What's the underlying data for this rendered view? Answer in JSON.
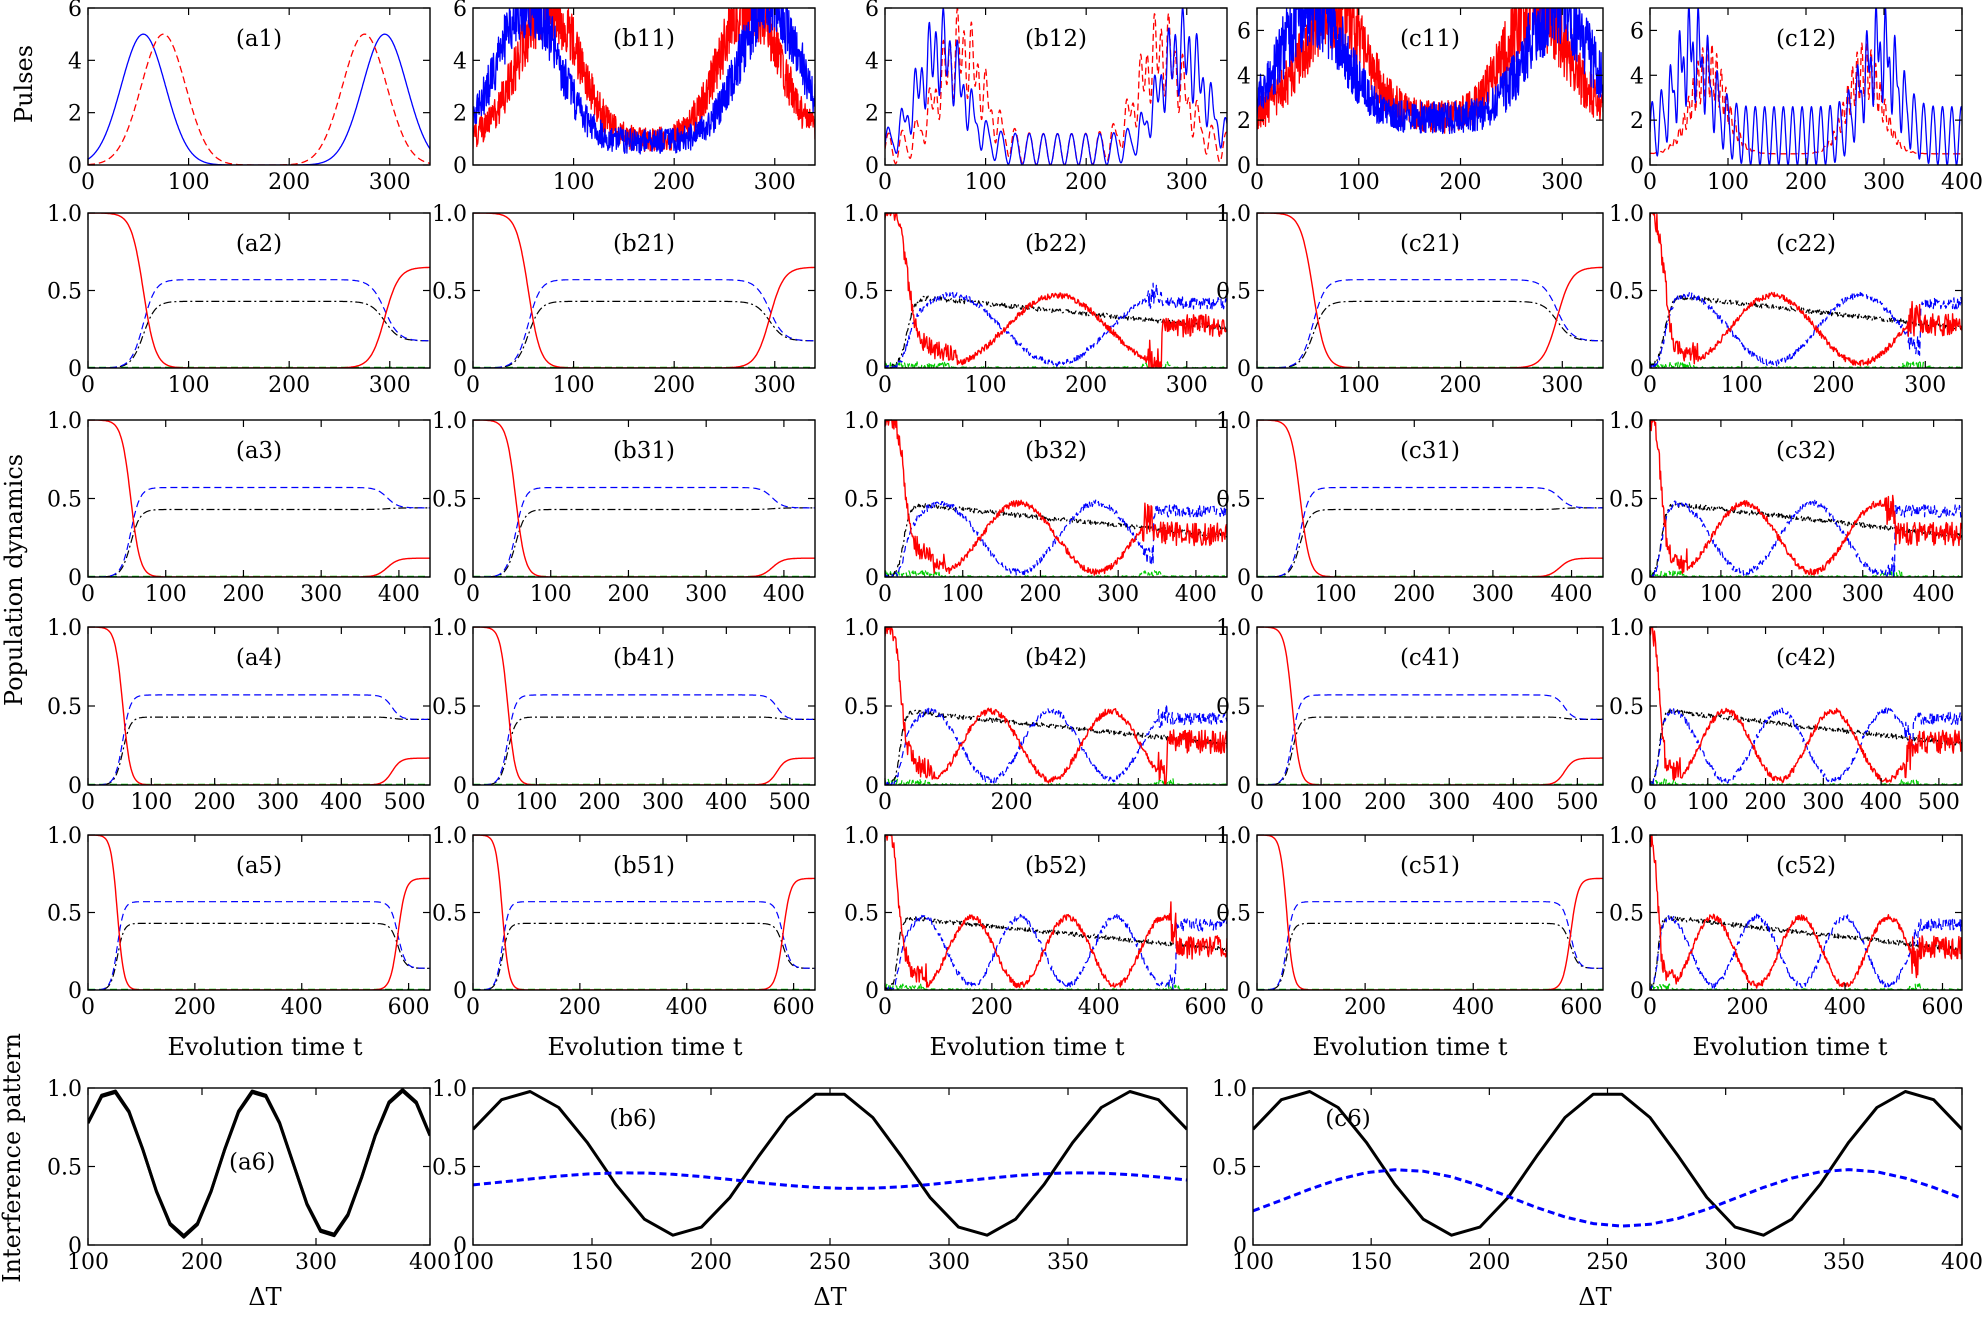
{
  "figure": {
    "row_labels": {
      "pulses": "Pulses",
      "population": "Population dynamics",
      "interference": "Interference pattern"
    },
    "xlabel_evolution": "Evolution time t",
    "xlabel_delta": "ΔT",
    "colors": {
      "blue": "#0000ff",
      "red": "#ff0000",
      "black": "#000000",
      "green": "#00cc00"
    }
  },
  "chart_data": [
    {
      "id": "a1",
      "type": "line",
      "label": "(a1)",
      "xlim": [
        0,
        340
      ],
      "ylim": [
        0,
        6
      ],
      "xticks": [
        0,
        100,
        200,
        300
      ],
      "yticks": [
        0,
        2,
        4,
        6
      ],
      "series": [
        {
          "name": "blue pulse",
          "color": "blue",
          "style": "solid",
          "kind": "gauss",
          "centers": [
            55,
            295
          ],
          "amp": 5,
          "width": 22
        },
        {
          "name": "red pulse",
          "color": "red",
          "style": "dashed",
          "kind": "gauss",
          "centers": [
            75,
            275
          ],
          "amp": 5,
          "width": 22
        }
      ]
    },
    {
      "id": "b11",
      "type": "line",
      "label": "(b11)",
      "xlim": [
        0,
        340
      ],
      "ylim": [
        0,
        6
      ],
      "xticks": [
        100,
        200,
        300
      ],
      "yticks": [
        0,
        2,
        4,
        6
      ],
      "series": [
        {
          "name": "red pulse",
          "color": "red",
          "style": "solid",
          "kind": "noisy",
          "centers": [
            75,
            275
          ],
          "amp": 5.2,
          "width": 30,
          "base": 0.9,
          "noise": 0.8
        },
        {
          "name": "blue pulse",
          "color": "blue",
          "style": "solid",
          "kind": "noisy",
          "centers": [
            55,
            295
          ],
          "amp": 5.2,
          "width": 30,
          "base": 0.9,
          "noise": 0.8
        }
      ]
    },
    {
      "id": "b12",
      "type": "line",
      "label": "(b12)",
      "xlim": [
        0,
        340
      ],
      "ylim": [
        0,
        6
      ],
      "xticks": [
        0,
        100,
        200,
        300
      ],
      "yticks": [
        0,
        2,
        4,
        6
      ],
      "series": [
        {
          "name": "red pulse",
          "color": "red",
          "style": "dashed",
          "kind": "osc",
          "centers": [
            75,
            275
          ],
          "amp": 5,
          "width": 22,
          "base": 0.6,
          "osc": 0.6,
          "period": 14
        },
        {
          "name": "blue pulse",
          "color": "blue",
          "style": "solid",
          "kind": "osc",
          "centers": [
            55,
            295
          ],
          "amp": 5,
          "width": 22,
          "base": 0.6,
          "osc": 0.6,
          "period": 14
        }
      ]
    },
    {
      "id": "c11",
      "type": "line",
      "label": "(c11)",
      "xlim": [
        0,
        340
      ],
      "ylim": [
        0,
        7
      ],
      "xticks": [
        0,
        100,
        200,
        300
      ],
      "yticks": [
        0,
        2,
        4,
        6
      ],
      "series": [
        {
          "name": "red pulse",
          "color": "red",
          "style": "solid",
          "kind": "noisy",
          "centers": [
            75,
            275
          ],
          "amp": 5,
          "width": 30,
          "base": 2.1,
          "noise": 1.2
        },
        {
          "name": "blue pulse",
          "color": "blue",
          "style": "solid",
          "kind": "noisy",
          "centers": [
            55,
            295
          ],
          "amp": 5,
          "width": 30,
          "base": 2.1,
          "noise": 1.2
        }
      ]
    },
    {
      "id": "c12",
      "type": "line",
      "label": "(c12)",
      "xlim": [
        0,
        400
      ],
      "ylim": [
        0,
        7
      ],
      "xticks": [
        0,
        100,
        200,
        300,
        400
      ],
      "yticks": [
        0,
        2,
        4,
        6
      ],
      "series": [
        {
          "name": "red pulse",
          "color": "red",
          "style": "dashed",
          "kind": "osc",
          "centers": [
            75,
            275
          ],
          "amp": 5,
          "width": 22,
          "base": 0.5,
          "osc": 0,
          "period": 12
        },
        {
          "name": "blue pulse",
          "color": "blue",
          "style": "solid",
          "kind": "osc",
          "centers": [
            55,
            295
          ],
          "amp": 5,
          "width": 22,
          "base": 1.3,
          "osc": 1.3,
          "period": 12
        }
      ]
    },
    {
      "id": "a2",
      "type": "line",
      "label": "(a2)",
      "xlim": [
        0,
        340
      ],
      "ylim": [
        0,
        1
      ],
      "xticks": [
        0,
        100,
        200,
        300
      ],
      "yticks": [
        "0",
        "0.5",
        "1.0"
      ],
      "kind": "adiabatic",
      "T1": 55,
      "T2": 295,
      "final_red": 0.65
    },
    {
      "id": "b21",
      "type": "line",
      "label": "(b21)",
      "xlim": [
        0,
        340
      ],
      "ylim": [
        0,
        1
      ],
      "xticks": [
        0,
        100,
        200,
        300
      ],
      "yticks": [
        "0",
        "0.5",
        "1.0"
      ],
      "kind": "adiabatic",
      "T1": 55,
      "T2": 295,
      "final_red": 0.65
    },
    {
      "id": "b22",
      "type": "line",
      "label": "(b22)",
      "xlim": [
        0,
        340
      ],
      "ylim": [
        0,
        1
      ],
      "xticks": [
        0,
        100,
        200,
        300
      ],
      "yticks": [
        "0",
        "0.5",
        "1.0"
      ],
      "kind": "noisy_osc",
      "T1": 55,
      "T2": 270,
      "period": 210,
      "phase": 0.0
    },
    {
      "id": "c21",
      "type": "line",
      "label": "(c21)",
      "xlim": [
        0,
        340
      ],
      "ylim": [
        0,
        1
      ],
      "xticks": [
        0,
        100,
        200,
        300
      ],
      "yticks": [
        "0",
        "0.5",
        "1.0"
      ],
      "kind": "adiabatic",
      "T1": 55,
      "T2": 295,
      "final_red": 0.65
    },
    {
      "id": "c22",
      "type": "line",
      "label": "(c22)",
      "xlim": [
        0,
        340
      ],
      "ylim": [
        0,
        1
      ],
      "xticks": [
        0,
        100,
        200,
        300
      ],
      "yticks": [
        "0",
        "0.5",
        "1.0"
      ],
      "kind": "noisy_osc",
      "T1": 40,
      "T2": 290,
      "period": 190,
      "phase": 0.3
    },
    {
      "id": "a3",
      "type": "line",
      "label": "(a3)",
      "xlim": [
        0,
        440
      ],
      "ylim": [
        0,
        1
      ],
      "xticks": [
        0,
        100,
        200,
        300,
        400
      ],
      "yticks": [
        "0",
        "0.5",
        "1.0"
      ],
      "kind": "adiabatic",
      "T1": 55,
      "T2": 385,
      "final_red": 0.12
    },
    {
      "id": "b31",
      "type": "line",
      "label": "(b31)",
      "xlim": [
        0,
        440
      ],
      "ylim": [
        0,
        1
      ],
      "xticks": [
        0,
        100,
        200,
        300,
        400
      ],
      "yticks": [
        "0",
        "0.5",
        "1.0"
      ],
      "kind": "adiabatic",
      "T1": 55,
      "T2": 385,
      "final_red": 0.12
    },
    {
      "id": "b32",
      "type": "line",
      "label": "(b32)",
      "xlim": [
        0,
        440
      ],
      "ylim": [
        0,
        1
      ],
      "xticks": [
        0,
        100,
        200,
        300,
        400
      ],
      "yticks": [
        "0",
        "0.5",
        "1.0"
      ],
      "kind": "noisy_osc",
      "T1": 60,
      "T2": 340,
      "period": 200,
      "phase": 0.0
    },
    {
      "id": "c31",
      "type": "line",
      "label": "(c31)",
      "xlim": [
        0,
        440
      ],
      "ylim": [
        0,
        1
      ],
      "xticks": [
        0,
        100,
        200,
        300,
        400
      ],
      "yticks": [
        "0",
        "0.5",
        "1.0"
      ],
      "kind": "adiabatic",
      "T1": 55,
      "T2": 385,
      "final_red": 0.12
    },
    {
      "id": "c32",
      "type": "line",
      "label": "(c32)",
      "xlim": [
        0,
        440
      ],
      "ylim": [
        0,
        1
      ],
      "xticks": [
        0,
        100,
        200,
        300,
        400
      ],
      "yticks": [
        "0",
        "0.5",
        "1.0"
      ],
      "kind": "noisy_osc",
      "T1": 40,
      "T2": 340,
      "period": 190,
      "phase": 0.3
    },
    {
      "id": "a4",
      "type": "line",
      "label": "(a4)",
      "xlim": [
        0,
        540
      ],
      "ylim": [
        0,
        1
      ],
      "xticks": [
        0,
        100,
        200,
        300,
        400,
        500
      ],
      "yticks": [
        "0",
        "0.5",
        "1.0"
      ],
      "kind": "adiabatic",
      "T1": 55,
      "T2": 480,
      "final_red": 0.17
    },
    {
      "id": "b41",
      "type": "line",
      "label": "(b41)",
      "xlim": [
        0,
        540
      ],
      "ylim": [
        0,
        1
      ],
      "xticks": [
        0,
        100,
        200,
        300,
        400,
        500
      ],
      "yticks": [
        "0",
        "0.5",
        "1.0"
      ],
      "kind": "adiabatic",
      "T1": 55,
      "T2": 480,
      "final_red": 0.17
    },
    {
      "id": "b42",
      "type": "line",
      "label": "(b42)",
      "xlim": [
        0,
        540
      ],
      "ylim": [
        0,
        1
      ],
      "xticks": [
        0,
        200,
        400
      ],
      "yticks": [
        "0",
        "0.5",
        "1.0"
      ],
      "kind": "noisy_osc",
      "T1": 60,
      "T2": 440,
      "period": 190,
      "phase": 0.0
    },
    {
      "id": "c41",
      "type": "line",
      "label": "(c41)",
      "xlim": [
        0,
        540
      ],
      "ylim": [
        0,
        1
      ],
      "xticks": [
        0,
        100,
        200,
        300,
        400,
        500
      ],
      "yticks": [
        "0",
        "0.5",
        "1.0"
      ],
      "kind": "adiabatic",
      "T1": 55,
      "T2": 480,
      "final_red": 0.17
    },
    {
      "id": "c42",
      "type": "line",
      "label": "(c42)",
      "xlim": [
        0,
        540
      ],
      "ylim": [
        0,
        1
      ],
      "xticks": [
        0,
        100,
        200,
        300,
        400,
        500
      ],
      "yticks": [
        "0",
        "0.5",
        "1.0"
      ],
      "kind": "noisy_osc",
      "T1": 40,
      "T2": 450,
      "period": 185,
      "phase": 0.3
    },
    {
      "id": "a5",
      "type": "line",
      "label": "(a5)",
      "xlim": [
        0,
        640
      ],
      "ylim": [
        0,
        1
      ],
      "xticks": [
        0,
        200,
        400,
        600
      ],
      "yticks": [
        "0",
        "0.5",
        "1.0"
      ],
      "kind": "adiabatic",
      "T1": 55,
      "T2": 580,
      "final_red": 0.72
    },
    {
      "id": "b51",
      "type": "line",
      "label": "(b51)",
      "xlim": [
        0,
        640
      ],
      "ylim": [
        0,
        1
      ],
      "xticks": [
        0,
        200,
        400,
        600
      ],
      "yticks": [
        "0",
        "0.5",
        "1.0"
      ],
      "kind": "adiabatic",
      "T1": 55,
      "T2": 580,
      "final_red": 0.72
    },
    {
      "id": "b52",
      "type": "line",
      "label": "(b52)",
      "xlim": [
        0,
        640
      ],
      "ylim": [
        0,
        1
      ],
      "xticks": [
        0,
        200,
        400,
        600
      ],
      "yticks": [
        "0",
        "0.5",
        "1.0"
      ],
      "kind": "noisy_osc",
      "T1": 60,
      "T2": 540,
      "period": 180,
      "phase": 0.0
    },
    {
      "id": "c51",
      "type": "line",
      "label": "(c51)",
      "xlim": [
        0,
        640
      ],
      "ylim": [
        0,
        1
      ],
      "xticks": [
        0,
        200,
        400,
        600
      ],
      "yticks": [
        "0",
        "0.5",
        "1.0"
      ],
      "kind": "adiabatic",
      "T1": 55,
      "T2": 580,
      "final_red": 0.72
    },
    {
      "id": "c52",
      "type": "line",
      "label": "(c52)",
      "xlim": [
        0,
        640
      ],
      "ylim": [
        0,
        1
      ],
      "xticks": [
        0,
        200,
        400,
        600
      ],
      "yticks": [
        "0",
        "0.5",
        "1.0"
      ],
      "kind": "noisy_osc",
      "T1": 40,
      "T2": 545,
      "period": 180,
      "phase": 0.3
    },
    {
      "id": "a6",
      "type": "line",
      "label": "(a6)",
      "xlim": [
        100,
        400
      ],
      "ylim": [
        0,
        1
      ],
      "xticks": [
        100,
        200,
        300,
        400
      ],
      "yticks": [
        "0",
        "0.5",
        "1.0"
      ],
      "series": [
        {
          "name": "interference",
          "color": "black",
          "style": "solid",
          "kind": "cos",
          "period": 128,
          "phase0": 120,
          "amp": 0.47,
          "mid": 0.52
        },
        {
          "name": "interference (overlay)",
          "color": "black",
          "style": "solid",
          "kind": "cos",
          "period": 128,
          "phase0": 120,
          "amp": 0.46,
          "mid": 0.52
        }
      ]
    },
    {
      "id": "b6",
      "type": "line",
      "label": "(b6)",
      "xlim": [
        100,
        400
      ],
      "ylim": [
        0,
        1
      ],
      "xticks": [
        100,
        150,
        200,
        250,
        300,
        350
      ],
      "yticks": [
        "0",
        "0.5",
        "1.0"
      ],
      "series": [
        {
          "name": "ideal",
          "color": "black",
          "style": "solid",
          "kind": "cos",
          "period": 128,
          "phase0": 122,
          "amp": 0.46,
          "mid": 0.52
        },
        {
          "name": "noisy",
          "color": "blue",
          "style": "dashed",
          "kind": "cos",
          "period": 190,
          "phase0": 165,
          "amp": 0.05,
          "mid": 0.41
        }
      ]
    },
    {
      "id": "c6",
      "type": "line",
      "label": "(c6)",
      "xlim": [
        100,
        400
      ],
      "ylim": [
        0,
        1
      ],
      "xticks": [
        100,
        150,
        200,
        250,
        300,
        350,
        400
      ],
      "yticks": [
        "0",
        "0.5",
        "1.0"
      ],
      "series": [
        {
          "name": "ideal",
          "color": "black",
          "style": "solid",
          "kind": "cos",
          "period": 128,
          "phase0": 122,
          "amp": 0.46,
          "mid": 0.52
        },
        {
          "name": "noisy",
          "color": "blue",
          "style": "dashed",
          "kind": "cos",
          "period": 190,
          "phase0": 162,
          "amp": 0.18,
          "mid": 0.3
        }
      ]
    }
  ]
}
